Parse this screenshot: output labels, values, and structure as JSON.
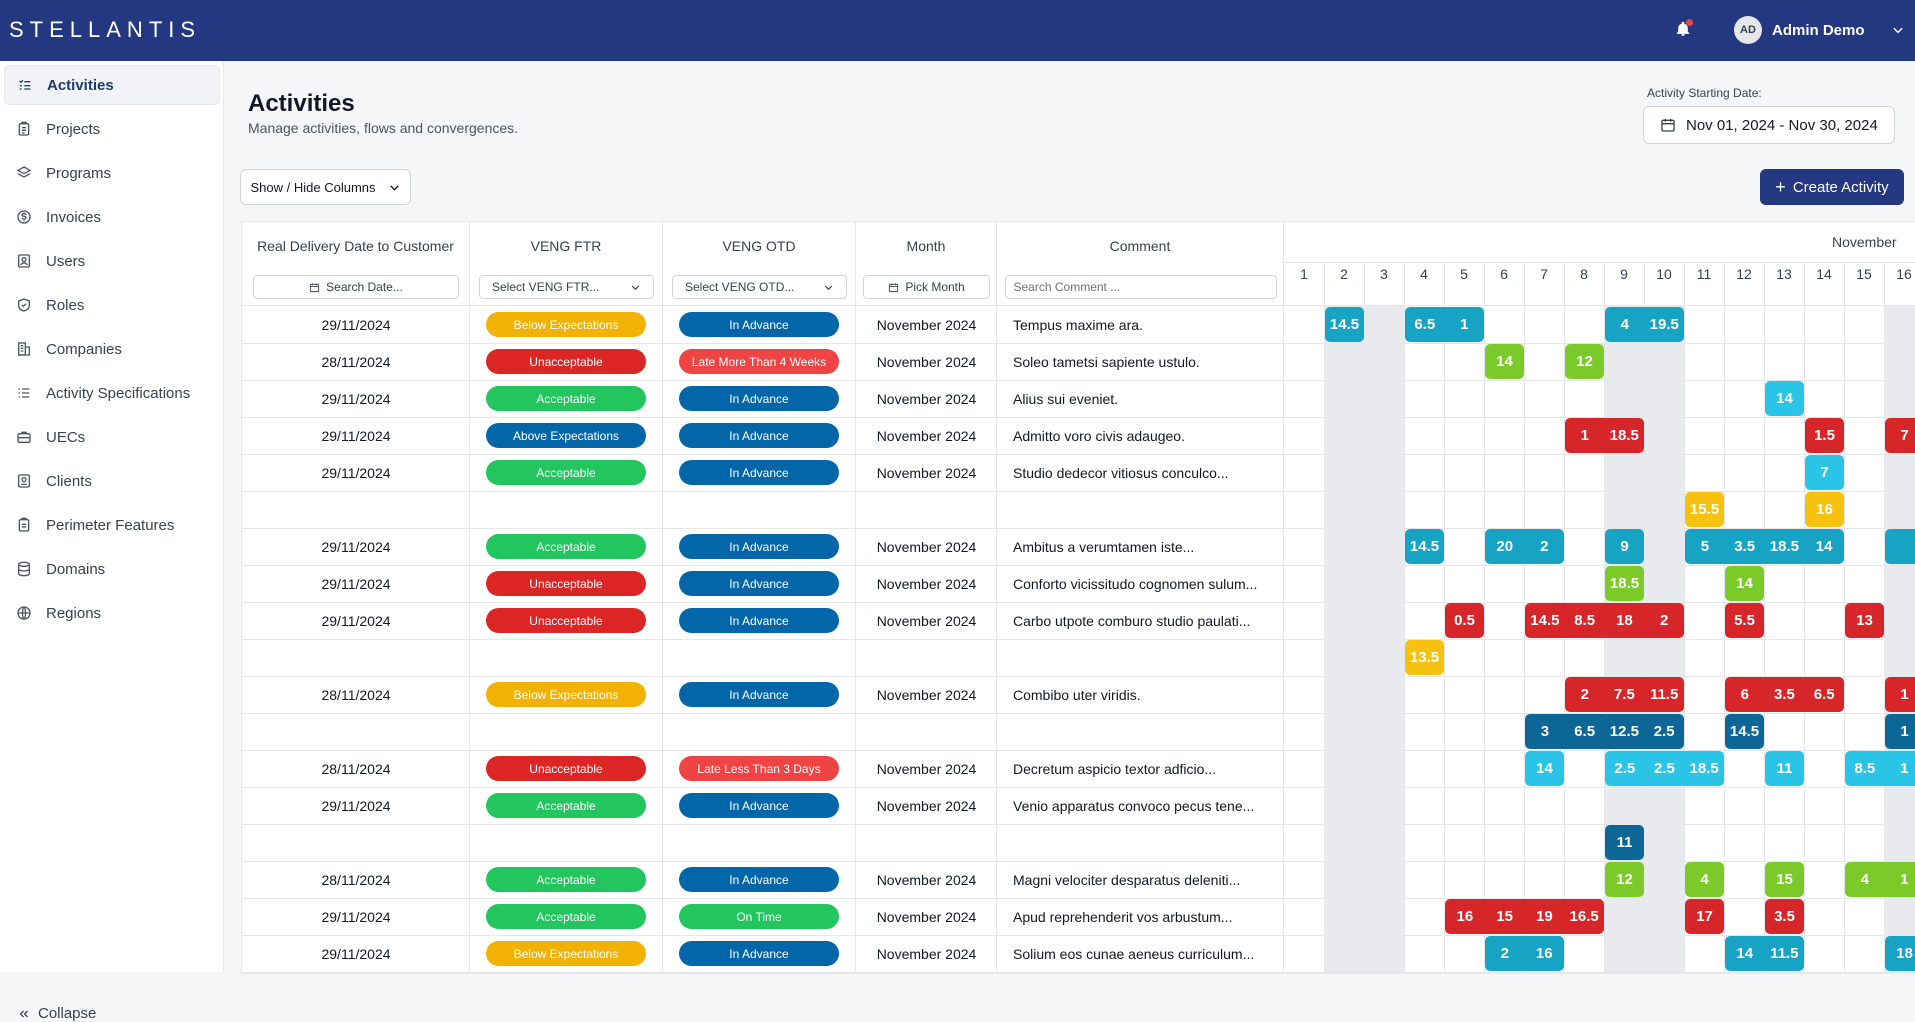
{
  "header": {
    "brand": "STELLANTIS",
    "user_initials": "AD",
    "user_name": "Admin Demo"
  },
  "sidebar": {
    "items": [
      {
        "label": "Activities",
        "icon": "list-check-icon",
        "active": true
      },
      {
        "label": "Projects",
        "icon": "clipboard-list-icon"
      },
      {
        "label": "Programs",
        "icon": "layers-icon"
      },
      {
        "label": "Invoices",
        "icon": "dollar-circle-icon"
      },
      {
        "label": "Users",
        "icon": "user-badge-icon"
      },
      {
        "label": "Roles",
        "icon": "shield-check-icon"
      },
      {
        "label": "Companies",
        "icon": "building-icon"
      },
      {
        "label": "Activity Specifications",
        "icon": "list-icon"
      },
      {
        "label": "UECs",
        "icon": "briefcase-icon"
      },
      {
        "label": "Clients",
        "icon": "user-card-icon"
      },
      {
        "label": "Perimeter Features",
        "icon": "clipboard-icon"
      },
      {
        "label": "Domains",
        "icon": "database-icon"
      },
      {
        "label": "Regions",
        "icon": "globe-icon"
      }
    ],
    "collapse_label": "Collapse"
  },
  "page": {
    "title": "Activities",
    "subtitle": "Manage activities, flows and convergences.",
    "date_label": "Activity Starting Date:",
    "date_range": "Nov 01, 2024 - Nov 30, 2024",
    "columns_button": "Show / Hide Columns",
    "create_button": "Create Activity"
  },
  "table": {
    "columns": [
      {
        "header": "Real Delivery Date to Customer",
        "filter": "Search Date..."
      },
      {
        "header": "VENG FTR",
        "filter": "Select VENG FTR..."
      },
      {
        "header": "VENG OTD",
        "filter": "Select VENG OTD..."
      },
      {
        "header": "Month",
        "filter": "Pick Month"
      },
      {
        "header": "Comment",
        "filter": "Search Comment ..."
      }
    ],
    "rows": [
      {
        "date": "29/11/2024",
        "ftr": "Below Expectations",
        "otd": "In Advance",
        "month": "November 2024",
        "comment": "Tempus maxime ara."
      },
      {
        "date": "28/11/2024",
        "ftr": "Unacceptable",
        "otd": "Late More Than 4 Weeks",
        "month": "November 2024",
        "comment": "Soleo tametsi sapiente ustulo."
      },
      {
        "date": "29/11/2024",
        "ftr": "Acceptable",
        "otd": "In Advance",
        "month": "November 2024",
        "comment": "Alius sui eveniet."
      },
      {
        "date": "29/11/2024",
        "ftr": "Above Expectations",
        "otd": "In Advance",
        "month": "November 2024",
        "comment": "Admitto voro civis adaugeo."
      },
      {
        "date": "29/11/2024",
        "ftr": "Acceptable",
        "otd": "In Advance",
        "month": "November 2024",
        "comment": "Studio dedecor vitiosus conculco..."
      },
      {
        "date": "",
        "ftr": "",
        "otd": "",
        "month": "",
        "comment": ""
      },
      {
        "date": "29/11/2024",
        "ftr": "Acceptable",
        "otd": "In Advance",
        "month": "November 2024",
        "comment": "Ambitus a verumtamen iste..."
      },
      {
        "date": "29/11/2024",
        "ftr": "Unacceptable",
        "otd": "In Advance",
        "month": "November 2024",
        "comment": "Conforto vicissitudo cognomen sulum..."
      },
      {
        "date": "29/11/2024",
        "ftr": "Unacceptable",
        "otd": "In Advance",
        "month": "November 2024",
        "comment": "Carbo utpote comburo studio paulati..."
      },
      {
        "date": "",
        "ftr": "",
        "otd": "",
        "month": "",
        "comment": ""
      },
      {
        "date": "28/11/2024",
        "ftr": "Below Expectations",
        "otd": "In Advance",
        "month": "November 2024",
        "comment": "Combibo uter viridis."
      },
      {
        "date": "",
        "ftr": "",
        "otd": "",
        "month": "",
        "comment": ""
      },
      {
        "date": "28/11/2024",
        "ftr": "Unacceptable",
        "otd": "Late Less Than 3 Days",
        "month": "November 2024",
        "comment": "Decretum aspicio textor adficio..."
      },
      {
        "date": "29/11/2024",
        "ftr": "Acceptable",
        "otd": "In Advance",
        "month": "November 2024",
        "comment": "Venio apparatus convoco pecus tene..."
      },
      {
        "date": "",
        "ftr": "",
        "otd": "",
        "month": "",
        "comment": ""
      },
      {
        "date": "28/11/2024",
        "ftr": "Acceptable",
        "otd": "In Advance",
        "month": "November 2024",
        "comment": "Magni velociter desparatus deleniti..."
      },
      {
        "date": "29/11/2024",
        "ftr": "Acceptable",
        "otd": "On Time",
        "month": "November 2024",
        "comment": "Apud reprehenderit vos arbustum..."
      },
      {
        "date": "29/11/2024",
        "ftr": "Below Expectations",
        "otd": "In Advance",
        "month": "November 2024",
        "comment": "Solium eos cunae aeneus curriculum..."
      }
    ]
  },
  "calendar": {
    "month": "November",
    "days": [
      "1",
      "2",
      "3",
      "4",
      "5",
      "6",
      "7",
      "8",
      "9",
      "10",
      "11",
      "12",
      "13",
      "14",
      "15",
      "16"
    ],
    "blocks": [
      {
        "row": 0,
        "start": 2,
        "span": 1,
        "color": "teal",
        "values": [
          "14.5"
        ]
      },
      {
        "row": 0,
        "start": 4,
        "span": 2,
        "color": "teal",
        "values": [
          "6.5",
          "1"
        ]
      },
      {
        "row": 0,
        "start": 9,
        "span": 2,
        "color": "teal",
        "values": [
          "4",
          "19.5"
        ]
      },
      {
        "row": 1,
        "start": 6,
        "span": 1,
        "color": "green",
        "values": [
          "14"
        ]
      },
      {
        "row": 1,
        "start": 8,
        "span": 1,
        "color": "green",
        "values": [
          "12"
        ]
      },
      {
        "row": 2,
        "start": 13,
        "span": 1,
        "color": "cyan",
        "values": [
          "14"
        ]
      },
      {
        "row": 3,
        "start": 8,
        "span": 2,
        "color": "red",
        "values": [
          "1",
          "18.5"
        ]
      },
      {
        "row": 3,
        "start": 14,
        "span": 1,
        "color": "red",
        "values": [
          "1.5"
        ]
      },
      {
        "row": 3,
        "start": 16,
        "span": 1,
        "color": "red",
        "values": [
          "7"
        ]
      },
      {
        "row": 4,
        "start": 14,
        "span": 1,
        "color": "cyan",
        "values": [
          "7"
        ]
      },
      {
        "row": 5,
        "start": 11,
        "span": 1,
        "color": "yellow",
        "values": [
          "15.5"
        ]
      },
      {
        "row": 5,
        "start": 14,
        "span": 1,
        "color": "yellow",
        "values": [
          "16"
        ]
      },
      {
        "row": 6,
        "start": 4,
        "span": 1,
        "color": "teal",
        "values": [
          "14.5"
        ]
      },
      {
        "row": 6,
        "start": 6,
        "span": 2,
        "color": "teal",
        "values": [
          "20",
          "2"
        ]
      },
      {
        "row": 6,
        "start": 9,
        "span": 1,
        "color": "teal",
        "values": [
          "9"
        ]
      },
      {
        "row": 6,
        "start": 11,
        "span": 4,
        "color": "teal",
        "values": [
          "5",
          "3.5",
          "18.5",
          "14"
        ]
      },
      {
        "row": 6,
        "start": 16,
        "span": 1,
        "color": "teal",
        "values": [
          ""
        ]
      },
      {
        "row": 7,
        "start": 9,
        "span": 1,
        "color": "green",
        "values": [
          "18.5"
        ]
      },
      {
        "row": 7,
        "start": 12,
        "span": 1,
        "color": "green",
        "values": [
          "14"
        ]
      },
      {
        "row": 8,
        "start": 5,
        "span": 1,
        "color": "red",
        "values": [
          "0.5"
        ]
      },
      {
        "row": 8,
        "start": 7,
        "span": 4,
        "color": "red",
        "values": [
          "14.5",
          "8.5",
          "18",
          "2"
        ]
      },
      {
        "row": 8,
        "start": 12,
        "span": 1,
        "color": "red",
        "values": [
          "5.5"
        ]
      },
      {
        "row": 8,
        "start": 15,
        "span": 1,
        "color": "red",
        "values": [
          "13"
        ]
      },
      {
        "row": 9,
        "start": 4,
        "span": 1,
        "color": "yellow",
        "values": [
          "13.5"
        ]
      },
      {
        "row": 10,
        "start": 8,
        "span": 3,
        "color": "red",
        "values": [
          "2",
          "7.5",
          "11.5"
        ]
      },
      {
        "row": 10,
        "start": 12,
        "span": 3,
        "color": "red",
        "values": [
          "6",
          "3.5",
          "6.5"
        ]
      },
      {
        "row": 10,
        "start": 16,
        "span": 1,
        "color": "red",
        "values": [
          "1"
        ]
      },
      {
        "row": 11,
        "start": 7,
        "span": 4,
        "color": "blue",
        "values": [
          "3",
          "6.5",
          "12.5",
          "2.5"
        ]
      },
      {
        "row": 11,
        "start": 12,
        "span": 1,
        "color": "blue",
        "values": [
          "14.5"
        ]
      },
      {
        "row": 11,
        "start": 16,
        "span": 1,
        "color": "blue",
        "values": [
          "1"
        ]
      },
      {
        "row": 12,
        "start": 7,
        "span": 1,
        "color": "cyan",
        "values": [
          "14"
        ]
      },
      {
        "row": 12,
        "start": 9,
        "span": 3,
        "color": "cyan",
        "values": [
          "2.5",
          "2.5",
          "18.5"
        ]
      },
      {
        "row": 12,
        "start": 13,
        "span": 1,
        "color": "cyan",
        "values": [
          "11"
        ]
      },
      {
        "row": 12,
        "start": 15,
        "span": 2,
        "color": "cyan",
        "values": [
          "8.5",
          "1"
        ]
      },
      {
        "row": 14,
        "start": 9,
        "span": 1,
        "color": "blue",
        "values": [
          "11"
        ]
      },
      {
        "row": 15,
        "start": 9,
        "span": 1,
        "color": "green",
        "values": [
          "12"
        ]
      },
      {
        "row": 15,
        "start": 11,
        "span": 1,
        "color": "green",
        "values": [
          "4"
        ]
      },
      {
        "row": 15,
        "start": 13,
        "span": 1,
        "color": "green",
        "values": [
          "15"
        ]
      },
      {
        "row": 15,
        "start": 15,
        "span": 2,
        "color": "green",
        "values": [
          "4",
          "1"
        ]
      },
      {
        "row": 16,
        "start": 5,
        "span": 4,
        "color": "red",
        "values": [
          "16",
          "15",
          "19",
          "16.5"
        ]
      },
      {
        "row": 16,
        "start": 11,
        "span": 1,
        "color": "red",
        "values": [
          "17"
        ]
      },
      {
        "row": 16,
        "start": 13,
        "span": 1,
        "color": "red",
        "values": [
          "3.5"
        ]
      },
      {
        "row": 17,
        "start": 6,
        "span": 2,
        "color": "teal",
        "values": [
          "2",
          "16"
        ]
      },
      {
        "row": 17,
        "start": 12,
        "span": 2,
        "color": "teal",
        "values": [
          "14",
          "11.5"
        ]
      },
      {
        "row": 17,
        "start": 16,
        "span": 1,
        "color": "teal",
        "values": [
          "18"
        ]
      }
    ]
  },
  "colors": {
    "brand": "#243882",
    "ftr": {
      "Below Expectations": "#f2b203",
      "Unacceptable": "#dc2626",
      "Acceptable": "#22c55e",
      "Above Expectations": "#0366a8"
    },
    "otd": {
      "In Advance": "#0366a8",
      "Late More Than 4 Weeks": "#ef4444",
      "Late Less Than 3 Days": "#ef4444",
      "On Time": "#22c55e"
    }
  }
}
